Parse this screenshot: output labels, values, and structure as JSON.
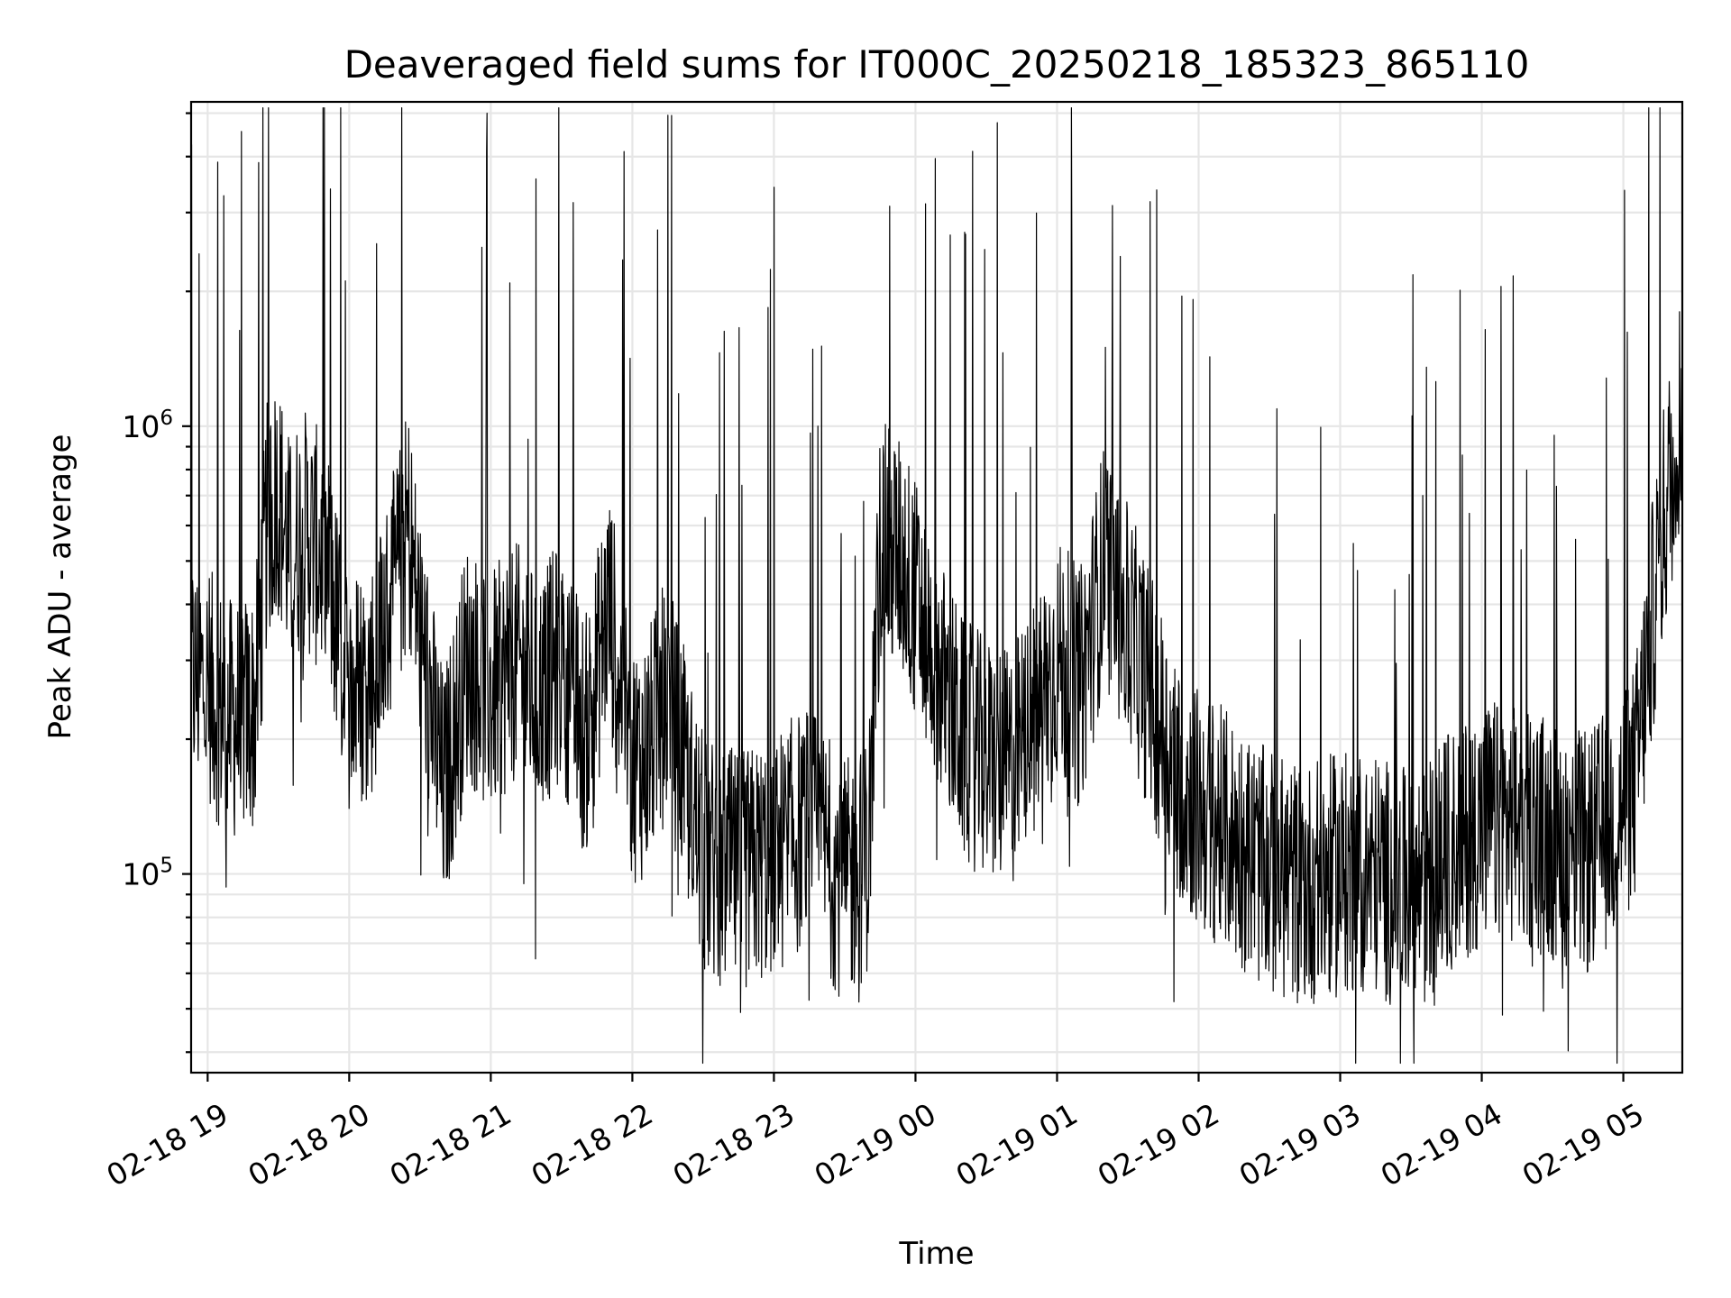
{
  "chart_data": {
    "type": "line",
    "title": "Deaveraged field sums for IT000C_20250218_185323_865110",
    "xlabel": "Time",
    "ylabel": "Peak ADU - average",
    "x_ticks": [
      "02-18 19",
      "02-18 20",
      "02-18 21",
      "02-18 22",
      "02-18 23",
      "02-19 00",
      "02-19 01",
      "02-19 02",
      "02-19 03",
      "02-19 04",
      "02-19 05"
    ],
    "y_ticks": [
      "10^5",
      "10^6"
    ],
    "y_scale": "log",
    "xlim": [
      "2025-02-18 18:53",
      "2025-02-19 05:25"
    ],
    "ylim": [
      36000,
      5300000
    ],
    "grid": true,
    "line_color": "#000000",
    "series": [
      {
        "x": [
          "2025-02-18 18:53",
          "2025-02-18 19:00",
          "2025-02-18 19:10",
          "2025-02-18 19:20",
          "2025-02-18 19:25",
          "2025-02-18 19:30",
          "2025-02-18 19:35",
          "2025-02-18 19:40",
          "2025-02-18 19:50",
          "2025-02-18 20:00",
          "2025-02-18 20:10",
          "2025-02-18 20:20",
          "2025-02-18 20:25",
          "2025-02-18 20:30",
          "2025-02-18 20:40",
          "2025-02-18 20:50",
          "2025-02-18 21:00",
          "2025-02-18 21:10",
          "2025-02-18 21:20",
          "2025-02-18 21:30",
          "2025-02-18 21:40",
          "2025-02-18 21:50",
          "2025-02-18 22:00",
          "2025-02-18 22:05",
          "2025-02-18 22:15",
          "2025-02-18 22:30",
          "2025-02-18 22:45",
          "2025-02-18 23:00",
          "2025-02-18 23:15",
          "2025-02-18 23:30",
          "2025-02-18 23:40",
          "2025-02-18 23:45",
          "2025-02-18 23:55",
          "2025-02-19 00:10",
          "2025-02-19 00:20",
          "2025-02-19 00:30",
          "2025-02-19 00:40",
          "2025-02-19 00:50",
          "2025-02-19 01:00",
          "2025-02-19 01:10",
          "2025-02-19 01:20",
          "2025-02-19 01:35",
          "2025-02-19 01:50",
          "2025-02-19 02:00",
          "2025-02-19 02:15",
          "2025-02-19 02:30",
          "2025-02-19 02:45",
          "2025-02-19 03:00",
          "2025-02-19 03:15",
          "2025-02-19 03:30",
          "2025-02-19 03:45",
          "2025-02-19 04:00",
          "2025-02-19 04:15",
          "2025-02-19 04:30",
          "2025-02-19 04:45",
          "2025-02-19 04:55",
          "2025-02-19 05:05",
          "2025-02-19 05:15",
          "2025-02-19 05:25"
        ],
        "y": [
          280000,
          260000,
          220000,
          230000,
          600000,
          700000,
          500000,
          600000,
          500000,
          250000,
          280000,
          450000,
          600000,
          350000,
          150000,
          300000,
          250000,
          300000,
          250000,
          300000,
          200000,
          400000,
          180000,
          180000,
          250000,
          110000,
          100000,
          110000,
          130000,
          95000,
          110000,
          550000,
          500000,
          280000,
          200000,
          180000,
          170000,
          220000,
          300000,
          260000,
          500000,
          300000,
          170000,
          140000,
          120000,
          100000,
          95000,
          100000,
          100000,
          90000,
          110000,
          130000,
          130000,
          120000,
          110000,
          130000,
          160000,
          500000,
          1200000
        ]
      }
    ]
  }
}
